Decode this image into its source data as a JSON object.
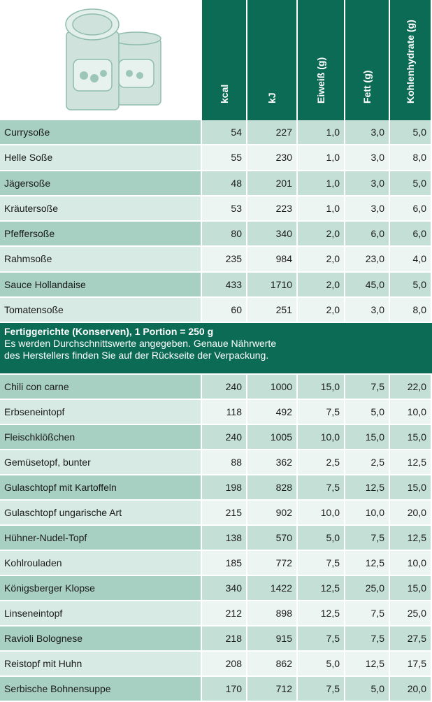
{
  "table": {
    "columns": [
      "kcal",
      "kJ",
      "Eiweiß (g)",
      "Fett (g)",
      "Kohlenhydrate (g)"
    ],
    "rows": [
      [
        "Currysoße",
        "54",
        "227",
        "1,0",
        "3,0",
        "5,0"
      ],
      [
        "Helle Soße",
        "55",
        "230",
        "1,0",
        "3,0",
        "8,0"
      ],
      [
        "Jägersoße",
        "48",
        "201",
        "1,0",
        "3,0",
        "5,0"
      ],
      [
        "Kräutersoße",
        "53",
        "223",
        "1,0",
        "3,0",
        "6,0"
      ],
      [
        "Pfeffersoße",
        "80",
        "340",
        "2,0",
        "6,0",
        "6,0"
      ],
      [
        "Rahmsoße",
        "235",
        "984",
        "2,0",
        "23,0",
        "4,0"
      ],
      [
        "Sauce Hollandaise",
        "433",
        "1710",
        "2,0",
        "45,0",
        "5,0"
      ],
      [
        "Tomatensoße",
        "60",
        "251",
        "2,0",
        "3,0",
        "8,0"
      ]
    ],
    "section": {
      "title": "Fertiggerichte (Konserven), 1 Portion = 250 g",
      "note": [
        "Es werden Durchschnittswerte angegeben. Genaue Nährwerte",
        "des Herstellers finden Sie auf der Rückseite der Verpackung."
      ],
      "rows": [
        [
          "Chili con carne",
          "240",
          "1000",
          "15,0",
          "7,5",
          "22,0"
        ],
        [
          "Erbseneintopf",
          "118",
          "492",
          "7,5",
          "5,0",
          "10,0"
        ],
        [
          "Fleischklößchen",
          "240",
          "1005",
          "10,0",
          "15,0",
          "15,0"
        ],
        [
          "Gemüsetopf, bunter",
          "88",
          "362",
          "2,5",
          "2,5",
          "12,5"
        ],
        [
          "Gulaschtopf mit Kartoffeln",
          "198",
          "828",
          "7,5",
          "12,5",
          "15,0"
        ],
        [
          "Gulaschtopf ungarische Art",
          "215",
          "902",
          "10,0",
          "10,0",
          "20,0"
        ],
        [
          "Hühner-Nudel-Topf",
          "138",
          "570",
          "5,0",
          "7,5",
          "12,5"
        ],
        [
          "Kohlrouladen",
          "185",
          "772",
          "7,5",
          "12,5",
          "10,0"
        ],
        [
          "Königsberger Klopse",
          "340",
          "1422",
          "12,5",
          "25,0",
          "15,0"
        ],
        [
          "Linseneintopf",
          "212",
          "898",
          "12,5",
          "7,5",
          "25,0"
        ],
        [
          "Ravioli Bolognese",
          "218",
          "915",
          "7,5",
          "7,5",
          "27,5"
        ],
        [
          "Reistopf mit Huhn",
          "208",
          "862",
          "5,0",
          "12,5",
          "17,5"
        ],
        [
          "Serbische Bohnensuppe",
          "170",
          "712",
          "7,5",
          "5,0",
          "20,0"
        ]
      ]
    }
  }
}
